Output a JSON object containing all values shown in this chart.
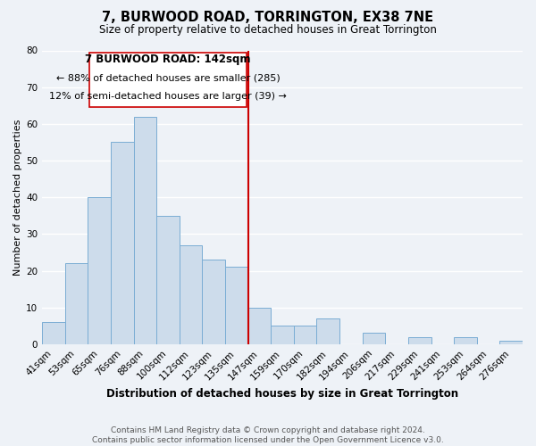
{
  "title": "7, BURWOOD ROAD, TORRINGTON, EX38 7NE",
  "subtitle": "Size of property relative to detached houses in Great Torrington",
  "xlabel": "Distribution of detached houses by size in Great Torrington",
  "ylabel": "Number of detached properties",
  "footer_line1": "Contains HM Land Registry data © Crown copyright and database right 2024.",
  "footer_line2": "Contains public sector information licensed under the Open Government Licence v3.0.",
  "bar_labels": [
    "41sqm",
    "53sqm",
    "65sqm",
    "76sqm",
    "88sqm",
    "100sqm",
    "112sqm",
    "123sqm",
    "135sqm",
    "147sqm",
    "159sqm",
    "170sqm",
    "182sqm",
    "194sqm",
    "206sqm",
    "217sqm",
    "229sqm",
    "241sqm",
    "253sqm",
    "264sqm",
    "276sqm"
  ],
  "bar_values": [
    6,
    22,
    40,
    55,
    62,
    35,
    27,
    23,
    21,
    10,
    5,
    5,
    7,
    0,
    3,
    0,
    2,
    0,
    2,
    0,
    1
  ],
  "bar_color": "#cddceb",
  "bar_edge_color": "#7aadd4",
  "ref_line_color": "#cc0000",
  "annotation_title": "7 BURWOOD ROAD: 142sqm",
  "annotation_line1": "← 88% of detached houses are smaller (285)",
  "annotation_line2": "12% of semi-detached houses are larger (39) →",
  "annotation_box_facecolor": "#ffffff",
  "annotation_box_edgecolor": "#cc0000",
  "ylim": [
    0,
    80
  ],
  "yticks": [
    0,
    10,
    20,
    30,
    40,
    50,
    60,
    70,
    80
  ],
  "background_color": "#eef2f7",
  "grid_color": "#ffffff",
  "title_fontsize": 10.5,
  "subtitle_fontsize": 8.5,
  "ylabel_fontsize": 8,
  "xlabel_fontsize": 8.5,
  "footer_fontsize": 6.5,
  "tick_fontsize": 7.5
}
